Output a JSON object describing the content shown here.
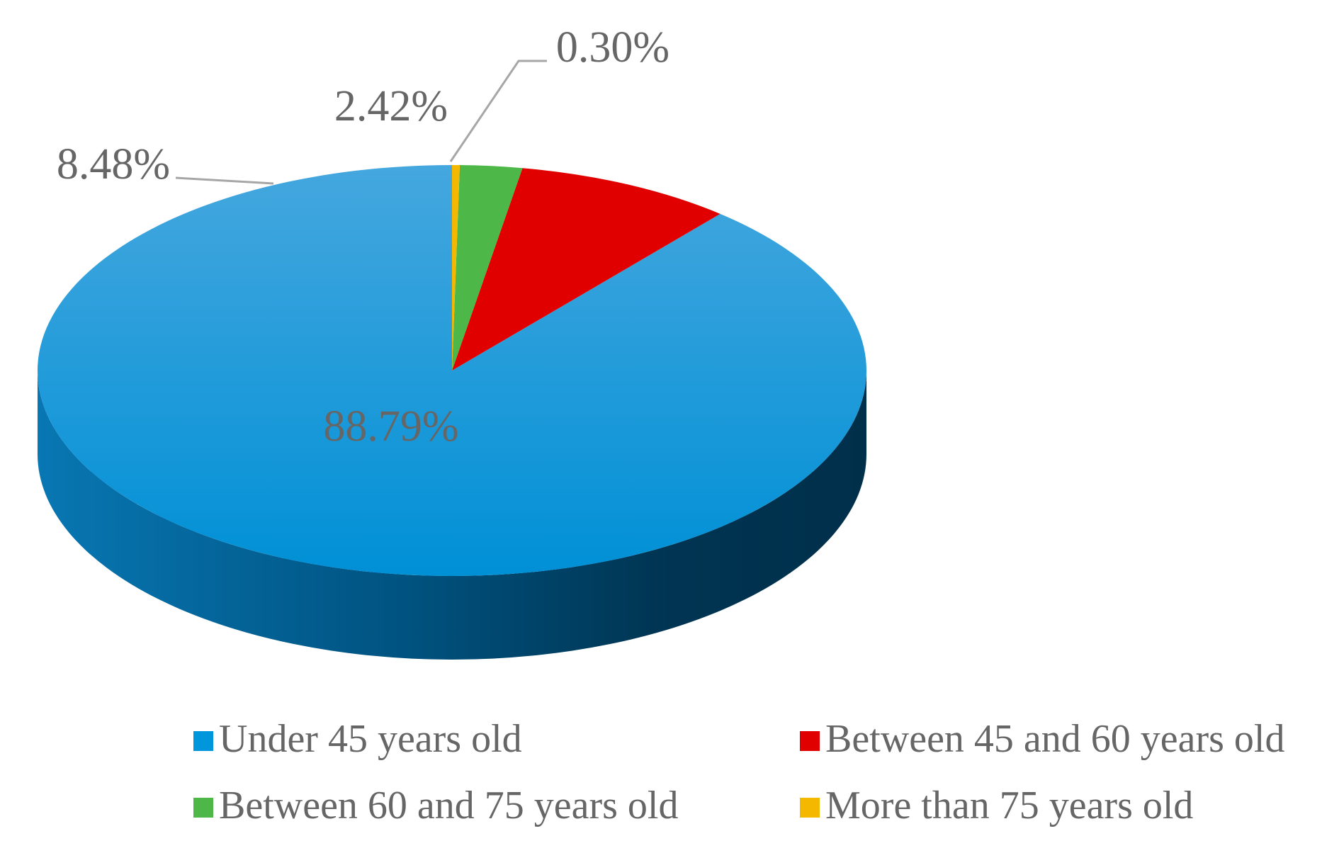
{
  "chart_data": {
    "type": "pie",
    "style": "3d",
    "categories": [
      "Under 45 years old",
      "Between 45 and 60 years old",
      "Between 60 and 75 years old",
      "More than 75 years old"
    ],
    "values": [
      88.79,
      8.48,
      2.42,
      0.3
    ],
    "labels": [
      "88.79%",
      "8.48%",
      "2.42%",
      "0.30%"
    ],
    "colors": [
      "#0096dc",
      "#e00000",
      "#4db848",
      "#f5b800"
    ],
    "legend": {
      "position": "bottom",
      "items": [
        {
          "label": "Under 45 years old",
          "color": "#0096dc"
        },
        {
          "label": "Between 45 and 60 years old",
          "color": "#e00000"
        },
        {
          "label": "Between 60 and 75 years old",
          "color": "#4db848"
        },
        {
          "label": "More than 75 years old",
          "color": "#f5b800"
        }
      ]
    }
  }
}
